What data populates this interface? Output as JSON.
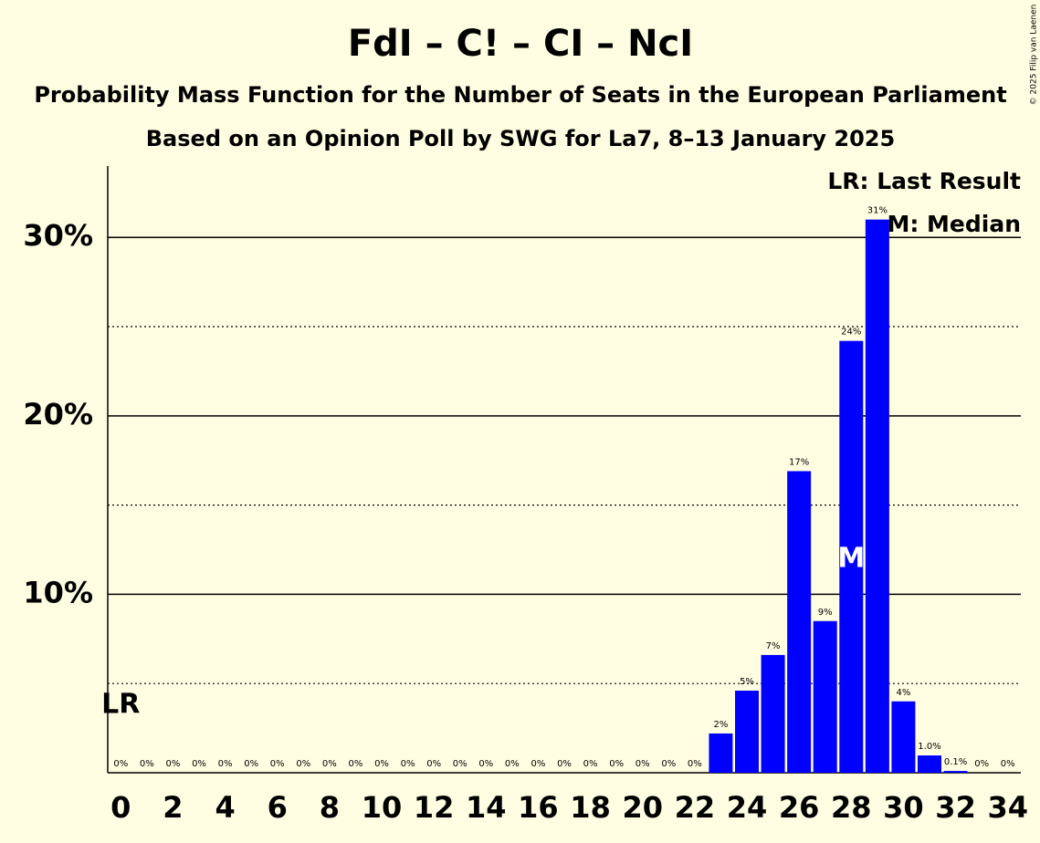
{
  "chart_data": {
    "type": "bar",
    "title": "FdI – C! – CI – NcI",
    "subtitle": "Probability Mass Function for the Number of Seats in the European Parliament",
    "subtitle2": "Based on an Opinion Poll by SWG for La7, 8–13 January 2025",
    "copyright": "© 2025 Filip van Laenen",
    "x": [
      0,
      1,
      2,
      3,
      4,
      5,
      6,
      7,
      8,
      9,
      10,
      11,
      12,
      13,
      14,
      15,
      16,
      17,
      18,
      19,
      20,
      21,
      22,
      23,
      24,
      25,
      26,
      27,
      28,
      29,
      30,
      31,
      32,
      33,
      34
    ],
    "values": [
      0,
      0,
      0,
      0,
      0,
      0,
      0,
      0,
      0,
      0,
      0,
      0,
      0,
      0,
      0,
      0,
      0,
      0,
      0,
      0,
      0,
      0,
      0,
      2.2,
      4.6,
      6.6,
      16.9,
      8.5,
      24.2,
      31.0,
      4.0,
      0.97,
      0.1,
      0,
      0
    ],
    "value_labels": [
      "0%",
      "0%",
      "0%",
      "0%",
      "0%",
      "0%",
      "0%",
      "0%",
      "0%",
      "0%",
      "0%",
      "0%",
      "0%",
      "0%",
      "0%",
      "0%",
      "0%",
      "0%",
      "0%",
      "0%",
      "0%",
      "0%",
      "0%",
      "2%",
      "5%",
      "7%",
      "17%",
      "9%",
      "24%",
      "31%",
      "4%",
      "1.0%",
      "0.1%",
      "0%",
      "0%"
    ],
    "color": "#0000ff",
    "xlim": [
      -0.5,
      34.5
    ],
    "xticks": [
      0,
      2,
      4,
      6,
      8,
      10,
      12,
      14,
      16,
      18,
      20,
      22,
      24,
      26,
      28,
      30,
      32,
      34
    ],
    "ylim": [
      0,
      34
    ],
    "yticks": [
      {
        "value": 10,
        "label": "10%"
      },
      {
        "value": 20,
        "label": "20%"
      },
      {
        "value": 30,
        "label": "30%"
      }
    ],
    "minor_yticks": [
      5,
      15,
      25
    ],
    "grid": true,
    "last_result": {
      "x": 0,
      "label": "LR"
    },
    "median": {
      "x": 28,
      "label": "M"
    },
    "legend": [
      "LR: Last Result",
      "M: Median"
    ]
  }
}
